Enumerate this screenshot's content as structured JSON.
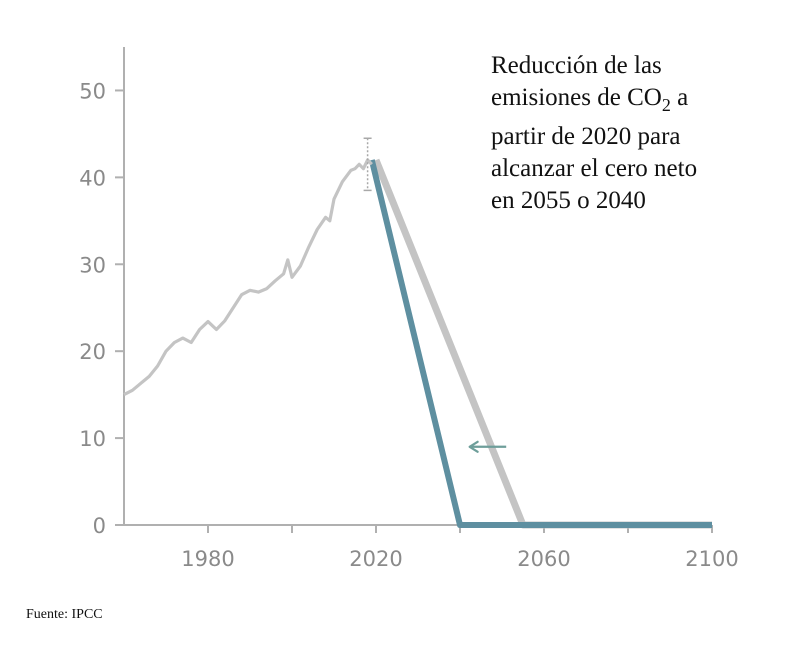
{
  "chart_data": {
    "type": "line",
    "title": "",
    "xlabel": "",
    "ylabel": "",
    "xlim": [
      1960,
      2100
    ],
    "ylim": [
      0,
      55
    ],
    "x_ticks": [
      1980,
      2020,
      2060,
      2100
    ],
    "y_ticks": [
      0,
      10,
      20,
      30,
      40,
      50
    ],
    "annotation": {
      "line1": "Reducción de las",
      "line2_pre": "emisiones de CO",
      "line2_sub": "2",
      "line2_post": " a",
      "line3": "partir de 2020 para",
      "line4": "alcanzar el cero neto",
      "line5": "en 2055 o 2040"
    },
    "colors": {
      "historical": "#c4c4c4",
      "net_zero_2055": "#c4c4c4",
      "net_zero_2040": "#5e8fa0",
      "axis": "#b0b0b0",
      "arrow": "#6e9e9a"
    },
    "uncertainty_2018": {
      "x": 2018,
      "low": 38.5,
      "high": 44.5
    },
    "series": [
      {
        "id": "historical",
        "x": [
          1960,
          1962,
          1964,
          1966,
          1968,
          1970,
          1972,
          1974,
          1976,
          1978,
          1980,
          1982,
          1984,
          1986,
          1988,
          1990,
          1992,
          1994,
          1996,
          1998,
          1999,
          2000,
          2002,
          2004,
          2006,
          2008,
          2009,
          2010,
          2012,
          2014,
          2015,
          2016,
          2017,
          2018,
          2019
        ],
        "y": [
          15.0,
          15.5,
          16.3,
          17.1,
          18.3,
          20.0,
          21.0,
          21.5,
          21.0,
          22.5,
          23.4,
          22.5,
          23.5,
          25.0,
          26.5,
          27.0,
          26.8,
          27.2,
          28.1,
          28.9,
          30.5,
          28.5,
          29.8,
          32.0,
          34.0,
          35.4,
          35.0,
          37.5,
          39.5,
          40.8,
          41.0,
          41.5,
          41.0,
          42.0,
          41.5
        ]
      },
      {
        "id": "net_zero_2055",
        "x": [
          2020,
          2055,
          2100
        ],
        "y": [
          42,
          0,
          0
        ]
      },
      {
        "id": "net_zero_2040",
        "x": [
          2019,
          2040,
          2100
        ],
        "y": [
          42,
          0,
          0
        ]
      }
    ]
  },
  "source": "Fuente: IPCC"
}
